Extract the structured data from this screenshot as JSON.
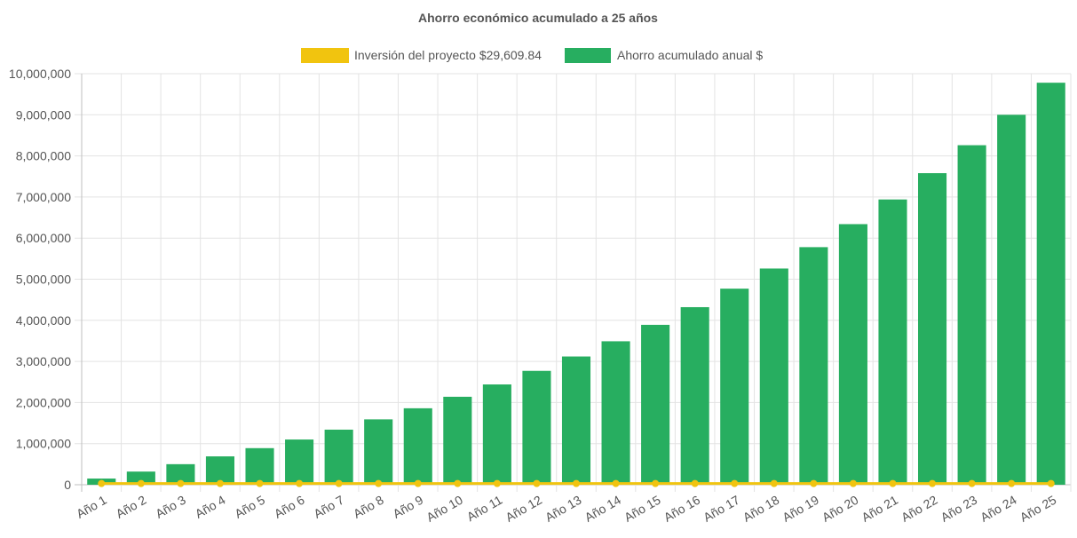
{
  "chart_data": {
    "type": "bar",
    "title": "Ahorro económico acumulado a 25 años",
    "xlabel": "",
    "ylabel": "",
    "ylim": [
      0,
      10000000
    ],
    "yticks": [
      0,
      1000000,
      2000000,
      3000000,
      4000000,
      5000000,
      6000000,
      7000000,
      8000000,
      9000000,
      10000000
    ],
    "ytick_labels": [
      "0",
      "1,000,000",
      "2,000,000",
      "3,000,000",
      "4,000,000",
      "5,000,000",
      "6,000,000",
      "7,000,000",
      "8,000,000",
      "9,000,000",
      "10,000,000"
    ],
    "grid": true,
    "legend_position": "top",
    "categories": [
      "Año 1",
      "Año 2",
      "Año 3",
      "Año 4",
      "Año 5",
      "Año 6",
      "Año 7",
      "Año 8",
      "Año 9",
      "Año 10",
      "Año 11",
      "Año 12",
      "Año 13",
      "Año 14",
      "Año 15",
      "Año 16",
      "Año 17",
      "Año 18",
      "Año 19",
      "Año 20",
      "Año 21",
      "Año 22",
      "Año 23",
      "Año 24",
      "Año 25"
    ],
    "series": [
      {
        "name": "Inversión del proyecto $29,609.84",
        "type": "line",
        "color": "#f1c40f",
        "values": [
          29609.84,
          29609.84,
          29609.84,
          29609.84,
          29609.84,
          29609.84,
          29609.84,
          29609.84,
          29609.84,
          29609.84,
          29609.84,
          29609.84,
          29609.84,
          29609.84,
          29609.84,
          29609.84,
          29609.84,
          29609.84,
          29609.84,
          29609.84,
          29609.84,
          29609.84,
          29609.84,
          29609.84,
          29609.84
        ]
      },
      {
        "name": "Ahorro acumulado anual $",
        "type": "bar",
        "color": "#27ae60",
        "values": [
          150000,
          320000,
          500000,
          690000,
          890000,
          1100000,
          1340000,
          1590000,
          1860000,
          2140000,
          2440000,
          2770000,
          3120000,
          3490000,
          3890000,
          4320000,
          4770000,
          5260000,
          5780000,
          6340000,
          6940000,
          7580000,
          8260000,
          9000000,
          9780000
        ]
      }
    ]
  }
}
